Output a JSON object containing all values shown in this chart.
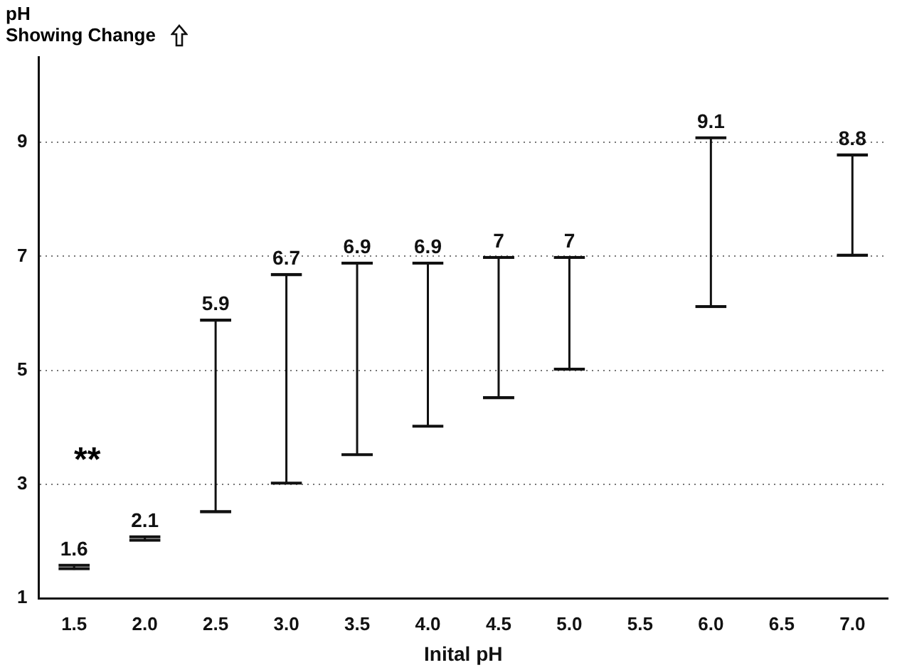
{
  "chart_data": {
    "type": "bar",
    "ylabel": "pH Showing Change",
    "xlabel": "Inital pH",
    "categories": [
      "1.5",
      "2.0",
      "2.5",
      "3.0",
      "3.5",
      "4.0",
      "4.5",
      "5.0",
      "5.5",
      "6.0",
      "6.5",
      "7.0"
    ],
    "base": [
      1.5,
      2.0,
      2.5,
      3.0,
      3.5,
      4.0,
      4.5,
      5.0,
      null,
      6.1,
      null,
      7.0
    ],
    "values": [
      0.1,
      0.1,
      3.4,
      3.7,
      3.4,
      2.9,
      2.5,
      2.0,
      null,
      3.0,
      null,
      1.8
    ],
    "value_labels": [
      "1.6",
      "2.1",
      "5.9",
      "6.7",
      "6.9",
      "6.9",
      "7",
      "7",
      null,
      "9.1",
      null,
      "8.8"
    ],
    "color": "#111111",
    "ylim": [
      1,
      10.5
    ],
    "yticks": [
      1,
      3,
      5,
      7,
      9
    ],
    "grid": "y",
    "legend": false,
    "annotations": [
      "**"
    ]
  }
}
